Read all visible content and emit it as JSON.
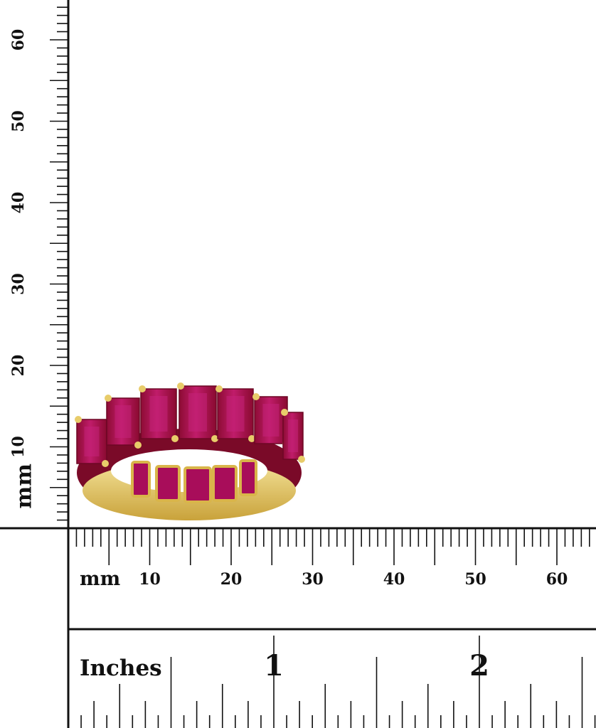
{
  "product": {
    "subject": "ruby emerald-cut eternity ring",
    "stone_color": "#b0124a",
    "metal_color": "#e2c25a"
  },
  "vertical_ruler": {
    "unit_label": "mm",
    "labels": [
      "10",
      "20",
      "30",
      "40",
      "50",
      "60"
    ],
    "max_mm": 65
  },
  "horizontal_mm_ruler": {
    "unit_label": "mm",
    "labels": [
      "10",
      "20",
      "30",
      "40",
      "50",
      "60"
    ],
    "max_mm": 65
  },
  "inch_ruler": {
    "unit_label": "Inches",
    "labels": [
      "1",
      "2"
    ],
    "subdivisions": 16
  },
  "colors": {
    "ink": "#111111",
    "background": "#ffffff"
  }
}
